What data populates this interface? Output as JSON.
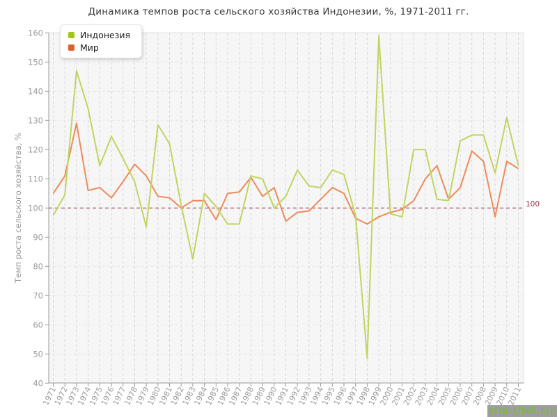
{
  "title": "Динамика темпов роста сельского хозяйства Индонезии, %, 1971-2011 гг.",
  "watermark": "http://be5.biz/",
  "chart_data": {
    "type": "line",
    "x": [
      1971,
      1972,
      1973,
      1974,
      1975,
      1976,
      1977,
      1978,
      1979,
      1980,
      1981,
      1982,
      1983,
      1984,
      1985,
      1986,
      1987,
      1988,
      1989,
      1990,
      1991,
      1992,
      1993,
      1994,
      1995,
      1996,
      1997,
      1998,
      1999,
      2000,
      2001,
      2002,
      2003,
      2004,
      2005,
      2006,
      2007,
      2008,
      2009,
      2010,
      2011
    ],
    "series": [
      {
        "name": "Индонезия",
        "color": "#a3c518",
        "line_color": "#c0d55f",
        "values": [
          97.5,
          104.5,
          147,
          134,
          114.5,
          124.5,
          117,
          109,
          93.5,
          128.5,
          122,
          101,
          82.5,
          105,
          100.5,
          94.5,
          94.5,
          111,
          110,
          100,
          104,
          113,
          107.5,
          107,
          113,
          111.5,
          97.5,
          48.5,
          159,
          98,
          97,
          120,
          120,
          103,
          102.5,
          123,
          125,
          125,
          112,
          131,
          114.5
        ]
      },
      {
        "name": "Мир",
        "color": "#e05f2b",
        "line_color": "#ee8a58",
        "values": [
          105,
          111,
          129,
          106,
          107,
          103.5,
          109,
          115,
          111,
          104,
          103.5,
          100,
          102.5,
          102.5,
          96,
          105,
          105.5,
          110.5,
          104,
          107,
          95.5,
          98.5,
          99,
          103,
          107,
          105,
          96.5,
          94.5,
          97,
          98.5,
          99.5,
          102.5,
          110,
          114.5,
          103,
          107,
          119.5,
          116,
          97,
          116,
          113.5
        ]
      }
    ],
    "ylabel": "Темп роста сельского хозяйства, %",
    "ylim": [
      40,
      160
    ],
    "ytick_step": 10,
    "reference_line": {
      "value": 100,
      "label": "100",
      "color": "#9b3043"
    },
    "grid": true,
    "legend_position": "top-left",
    "colors": {
      "plot_bg": "#f6f6f6",
      "plot_border": "#e2e2e2",
      "grid_v": "#d8d8d8",
      "grid_h": "#e5e5e5",
      "axis": "#9a9a9a",
      "tick_text": "#9b9b9b"
    }
  }
}
